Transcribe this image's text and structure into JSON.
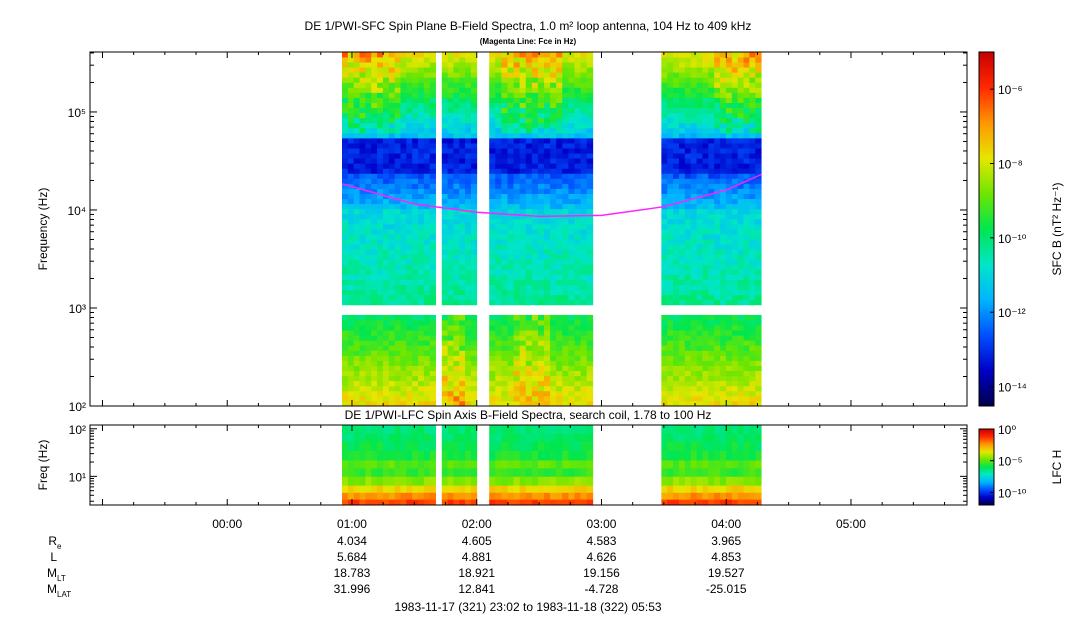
{
  "title": "DE 1/PWI-SFC  Spin Plane B-Field Spectra, 1.0 m² loop antenna, 104 Hz to 409 kHz",
  "subtitle": "(Magenta Line: Fce in Hz)",
  "colors": {
    "fce_line": "#ff22ff",
    "colormap": [
      "#00004a",
      "#0000c8",
      "#0050ff",
      "#00b4ff",
      "#00e6c8",
      "#00e650",
      "#6ee600",
      "#e6e600",
      "#ff9600",
      "#ff2800",
      "#c80000"
    ]
  },
  "chart_data": [
    {
      "type": "heatmap",
      "title": "DE 1/PWI-SFC  Spin Plane B-Field Spectra, 1.0 m² loop antenna, 104 Hz to 409 kHz",
      "ylabel": "Frequency (Hz)",
      "yscale": "log",
      "ylim": [
        100,
        409000
      ],
      "yticks": [
        {
          "value": 100,
          "label": "10²"
        },
        {
          "value": 1000,
          "label": "10³"
        },
        {
          "value": 10000,
          "label": "10⁴"
        },
        {
          "value": 100000,
          "label": "10⁵"
        }
      ],
      "xlim_hours": [
        -1.1,
        5.93
      ],
      "data_segments_hours": [
        [
          0.92,
          1.67
        ],
        [
          1.72,
          2.0
        ],
        [
          2.1,
          2.93
        ],
        [
          3.48,
          4.28
        ]
      ],
      "band_gap_hz": [
        900,
        1100
      ],
      "fce_line": {
        "label": "Fce in Hz",
        "x_hours": [
          0.92,
          1.5,
          2.0,
          2.5,
          3.0,
          3.5,
          4.0,
          4.28
        ],
        "y_hz": [
          18500,
          11500,
          9500,
          8600,
          8800,
          10800,
          16000,
          23000
        ]
      },
      "colorbar": {
        "label": "SFC B (nT² Hz⁻¹)",
        "scale": "log",
        "range": [
          3e-15,
          1e-05
        ],
        "ticks": [
          {
            "value": 1e-06,
            "label": "10⁻⁶"
          },
          {
            "value": 1e-08,
            "label": "10⁻⁸"
          },
          {
            "value": 1e-10,
            "label": "10⁻¹⁰"
          },
          {
            "value": 1e-12,
            "label": "10⁻¹²"
          },
          {
            "value": 1e-14,
            "label": "10⁻¹⁴"
          }
        ]
      }
    },
    {
      "type": "heatmap",
      "title": "DE 1/PWI-LFC  Spin Axis B-Field Spectra, search coil, 1.78 to 100 Hz",
      "ylabel": "Freq (Hz)",
      "yscale": "log",
      "ylim": [
        2.5,
        120
      ],
      "yticks": [
        {
          "value": 10,
          "label": "10¹"
        },
        {
          "value": 100,
          "label": "10²"
        }
      ],
      "xlim_hours": [
        -1.1,
        5.93
      ],
      "data_segments_hours": [
        [
          0.92,
          1.67
        ],
        [
          1.72,
          2.0
        ],
        [
          2.1,
          2.93
        ],
        [
          3.48,
          4.28
        ]
      ],
      "colorbar": {
        "label": "LFC H",
        "scale": "log",
        "range": [
          1e-12,
          1
        ],
        "ticks": [
          {
            "value": 1,
            "label": "10⁰"
          },
          {
            "value": 1e-05,
            "label": "10⁻⁵"
          },
          {
            "value": 1e-10,
            "label": "10⁻¹⁰"
          }
        ]
      }
    }
  ],
  "xaxis": {
    "ticks": [
      {
        "hour": 0,
        "label": "00:00"
      },
      {
        "hour": 1,
        "label": "01:00"
      },
      {
        "hour": 2,
        "label": "02:00"
      },
      {
        "hour": 3,
        "label": "03:00"
      },
      {
        "hour": 4,
        "label": "04:00"
      },
      {
        "hour": 5,
        "label": "05:00"
      }
    ],
    "minor_step_hours": 0.25
  },
  "ephemeris": {
    "rows": [
      {
        "label": "R",
        "sub": "e",
        "values": [
          "4.034",
          "4.605",
          "4.583",
          "3.965"
        ]
      },
      {
        "label": "L",
        "sub": "",
        "values": [
          "5.684",
          "4.881",
          "4.626",
          "4.853"
        ]
      },
      {
        "label": "M",
        "sub": "LT",
        "values": [
          "18.783",
          "18.921",
          "19.156",
          "19.527"
        ]
      },
      {
        "label": "M",
        "sub": "LAT",
        "values": [
          "31.996",
          "12.841",
          "-4.728",
          "-25.015"
        ]
      }
    ],
    "value_hours": [
      1,
      2,
      3,
      4
    ]
  },
  "time_range": "1983-11-17 (321) 23:02 to 1983-11-18 (322) 05:53"
}
